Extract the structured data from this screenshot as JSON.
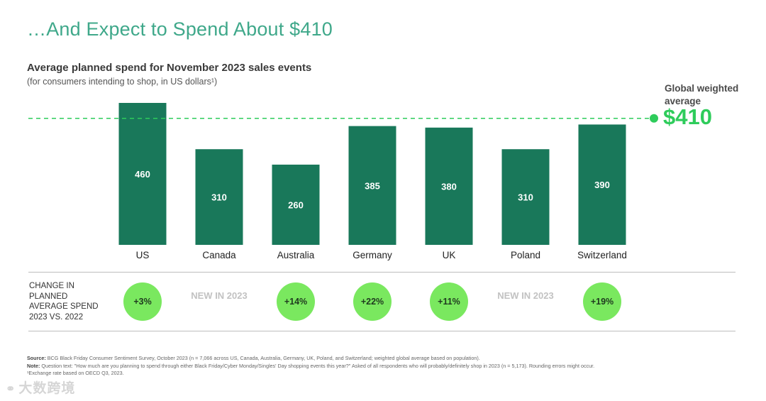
{
  "page": {
    "title": "…And Expect to Spend About $410"
  },
  "colors": {
    "bar": "#19785a",
    "accent_green": "#2ecc5b",
    "badge_fill": "#7ae85f",
    "title_teal": "#3fa88a"
  },
  "chart_data": {
    "type": "bar",
    "title": "Average planned spend for November 2023 sales events",
    "subtitle": "(for consumers intending to shop, in US dollars¹)",
    "categories": [
      "US",
      "Canada",
      "Australia",
      "Germany",
      "UK",
      "Poland",
      "Switzerland"
    ],
    "values": [
      460,
      310,
      260,
      385,
      380,
      310,
      390
    ],
    "value_labels": [
      "460",
      "310",
      "260",
      "385",
      "380",
      "310",
      "390"
    ],
    "ylim": [
      0,
      460
    ],
    "reference_line": {
      "value": 410,
      "label": "Global weighted average",
      "value_label": "$410",
      "style": "dashed"
    },
    "xlabel": "",
    "ylabel": "",
    "grid": false
  },
  "change_row": {
    "label": "Change in planned average spend 2023 vs. 2022",
    "items": [
      {
        "type": "badge",
        "text": "+3%"
      },
      {
        "type": "new",
        "text": "NEW IN 2023"
      },
      {
        "type": "badge",
        "text": "+14%"
      },
      {
        "type": "badge",
        "text": "+22%"
      },
      {
        "type": "badge",
        "text": "+11%"
      },
      {
        "type": "new",
        "text": "NEW IN 2023"
      },
      {
        "type": "badge",
        "text": "+19%"
      }
    ]
  },
  "footnotes": {
    "source_label": "Source:",
    "source_text": "BCG Black Friday Consumer Sentiment Survey, October 2023 (n = 7,066 across US, Canada, Australia, Germany, UK, Poland, and Switzerland; weighted global average based on population).",
    "note_label": "Note:",
    "note_text": "Question text: \"How much are you planning to spend through either Black Friday/Cyber Monday/Singles' Day shopping events this year?\" Asked of all respondents who will probably/definitely shop in 2023 (n = 5,173). Rounding errors might occur.",
    "exchange_text": "¹Exchange rate based on OECD Q3, 2023."
  },
  "watermark": {
    "icon": "link-icon",
    "text": "大数跨境"
  }
}
